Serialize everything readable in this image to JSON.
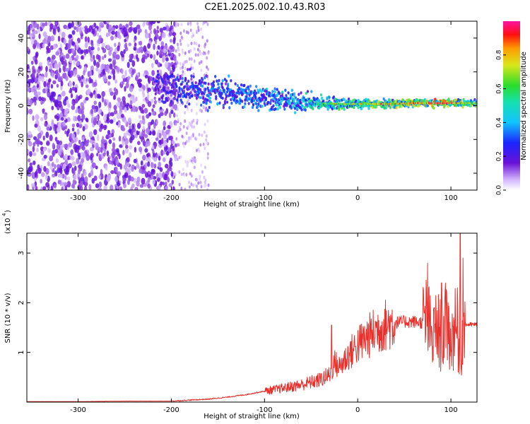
{
  "title": "C2E1.2025.002.10.43.R03",
  "colors": {
    "snr_line": "#e8302c",
    "frame": "#000000",
    "background": "#ffffff",
    "spectrogram_noise": "#6a11d6",
    "spectrogram_faint": "#d9bff3",
    "signal_core": "#ff1010",
    "signal_high": "#2bdc2b",
    "signal_mid": "#14d8d8"
  },
  "chart_data": [
    {
      "type": "heatmap",
      "title": "C2E1.2025.002.10.43.R03",
      "xlabel": "Height of straight line (km)",
      "ylabel": "Frequency (Hz)",
      "xlim": [
        -355,
        128
      ],
      "ylim": [
        -50,
        50
      ],
      "x_ticks": [
        -300,
        -200,
        -100,
        0,
        100
      ],
      "x_tick_labels": [
        "-300",
        "-200",
        "-100",
        "0",
        "100"
      ],
      "y_ticks": [
        -40,
        -20,
        0,
        20,
        40
      ],
      "y_tick_labels": [
        "-40",
        "-20",
        "0",
        "20",
        "40"
      ],
      "colorbar": {
        "label": "Normalized spectral amplitude",
        "range": [
          0,
          1
        ],
        "ticks": [
          0.0,
          0.2,
          0.4,
          0.6,
          0.8
        ],
        "tick_labels": [
          "0.0",
          "0.2",
          "0.4",
          "0.6",
          "0.8"
        ],
        "colormap": "rainbow (white/purple → blue → cyan → green → yellow → red → magenta)"
      },
      "features": {
        "broadband_noise_x": [
          -355,
          -195
        ],
        "sparse_noise_x": [
          -195,
          -160
        ],
        "signal_track": {
          "x": [
            -220,
            -180,
            -150,
            -120,
            -100,
            -80,
            -60,
            -40,
            -20,
            0,
            20,
            40,
            60,
            80,
            100,
            110,
            128
          ],
          "freq_hz": [
            12,
            10,
            8,
            6,
            5,
            3,
            2,
            1.5,
            1,
            1,
            1,
            1,
            1.5,
            1.5,
            1.5,
            1.5,
            1.5
          ],
          "amplitude": [
            0.25,
            0.32,
            0.38,
            0.4,
            0.42,
            0.45,
            0.5,
            0.55,
            0.6,
            0.65,
            0.7,
            0.72,
            0.75,
            0.85,
            0.9,
            0.7,
            0.6
          ]
        }
      }
    },
    {
      "type": "line",
      "title": "",
      "xlabel": "Height of straight line (km)",
      "ylabel": "SNR (10 * v/v)",
      "y_scale_label": "(x10",
      "y_scale_exponent": "4",
      "y_multiplier": 10000,
      "xlim": [
        -355,
        128
      ],
      "ylim": [
        0,
        3.4
      ],
      "x_ticks": [
        -300,
        -200,
        -100,
        0,
        100
      ],
      "x_tick_labels": [
        "-300",
        "-200",
        "-100",
        "0",
        "100"
      ],
      "y_ticks": [
        1,
        2,
        3
      ],
      "y_tick_labels": [
        "1",
        "2",
        "3"
      ],
      "series": [
        {
          "color": "#e8302c",
          "x": [
            -355,
            -300,
            -250,
            -200,
            -180,
            -160,
            -140,
            -120,
            -100,
            -80,
            -60,
            -40,
            -30,
            -25,
            -20,
            -10,
            0,
            10,
            20,
            30,
            40,
            50,
            60,
            70,
            75,
            80,
            85,
            90,
            95,
            100,
            105,
            110,
            115,
            120,
            128
          ],
          "y": [
            0.01,
            0.01,
            0.02,
            0.02,
            0.04,
            0.06,
            0.1,
            0.15,
            0.22,
            0.28,
            0.35,
            0.45,
            0.55,
            0.8,
            0.7,
            0.95,
            1.15,
            1.3,
            1.45,
            1.55,
            1.6,
            1.62,
            1.62,
            1.6,
            1.7,
            1.2,
            1.5,
            1.3,
            1.6,
            1.2,
            1.5,
            1.0,
            1.56,
            1.56,
            1.56
          ],
          "spikes": [
            {
              "x": -28,
              "y": 1.55
            },
            {
              "x": 75,
              "y": 2.8
            },
            {
              "x": 82,
              "y": 1.9
            },
            {
              "x": 90,
              "y": 2.4
            },
            {
              "x": 97,
              "y": 2.0
            },
            {
              "x": 103,
              "y": 1.7
            },
            {
              "x": 107,
              "y": 2.3
            },
            {
              "x": 110,
              "y": 3.4
            },
            {
              "x": 113,
              "y": 2.9
            }
          ]
        }
      ]
    }
  ]
}
